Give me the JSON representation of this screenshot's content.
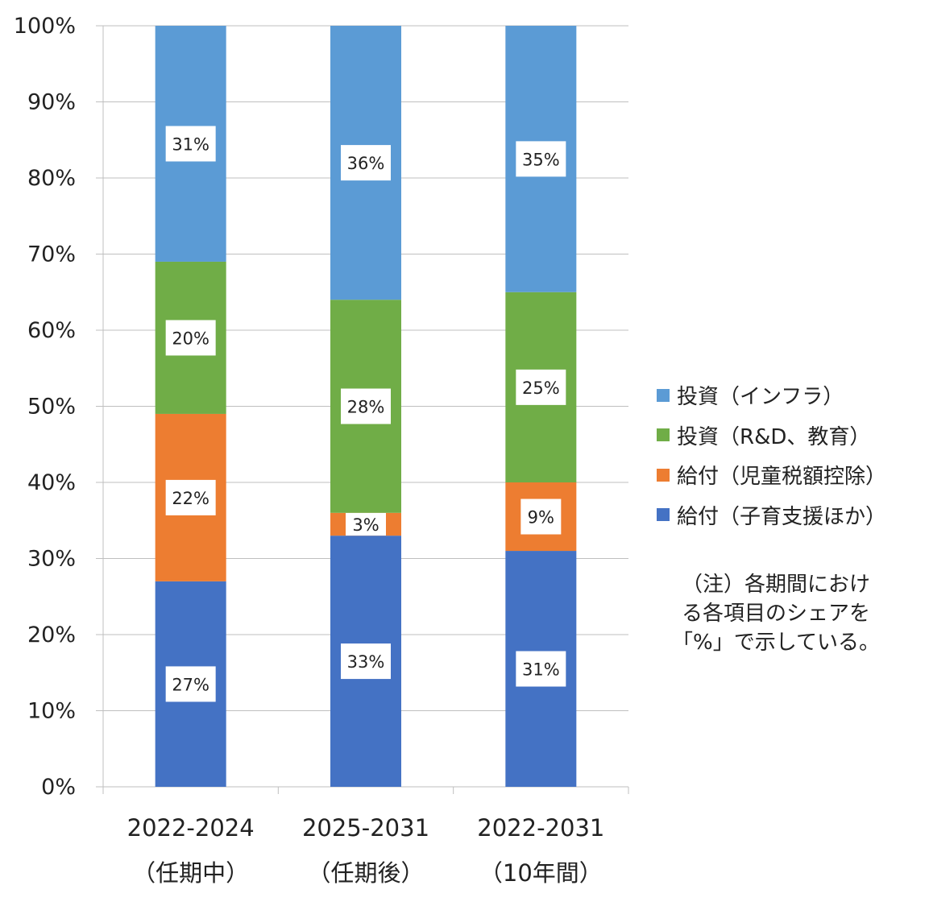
{
  "chart_data": {
    "type": "bar",
    "stacked": true,
    "percent_stacked": true,
    "categories": [
      "2022-2024",
      "2025-2031",
      "2022-2031"
    ],
    "category_sublabels": [
      "（任期中）",
      "（任期後）",
      "（10年間）"
    ],
    "series": [
      {
        "name": "給付（子育支援ほか）",
        "values": [
          27,
          33,
          31
        ],
        "labels": [
          "27%",
          "33%",
          "31%"
        ],
        "color": "#4472C4"
      },
      {
        "name": "給付（児童税額控除）",
        "values": [
          22,
          3,
          9
        ],
        "labels": [
          "22%",
          "3%",
          "9%"
        ],
        "color": "#ED7D31"
      },
      {
        "name": "投資（R&D、教育）",
        "values": [
          20,
          28,
          25
        ],
        "labels": [
          "20%",
          "28%",
          "25%"
        ],
        "color": "#70AD47"
      },
      {
        "name": "投資（インフラ）",
        "values": [
          31,
          36,
          35
        ],
        "labels": [
          "31%",
          "36%",
          "35%"
        ],
        "color": "#5B9BD5"
      }
    ],
    "ylim": [
      0,
      100
    ],
    "yticks": [
      0,
      10,
      20,
      30,
      40,
      50,
      60,
      70,
      80,
      90,
      100
    ],
    "ytick_labels": [
      "0%",
      "10%",
      "20%",
      "30%",
      "40%",
      "50%",
      "60%",
      "70%",
      "80%",
      "90%",
      "100%"
    ],
    "grid": true,
    "legend_position": "right",
    "legend_order": [
      "投資（インフラ）",
      "投資（R&D、教育）",
      "給付（児童税額控除）",
      "給付（子育支援ほか）"
    ],
    "note": "（注）各期間における各項目のシェアを「%」で示している。"
  },
  "note": {
    "text": "（注）各期間におけ\nる各項目のシェアを\n「%」で示している。"
  }
}
